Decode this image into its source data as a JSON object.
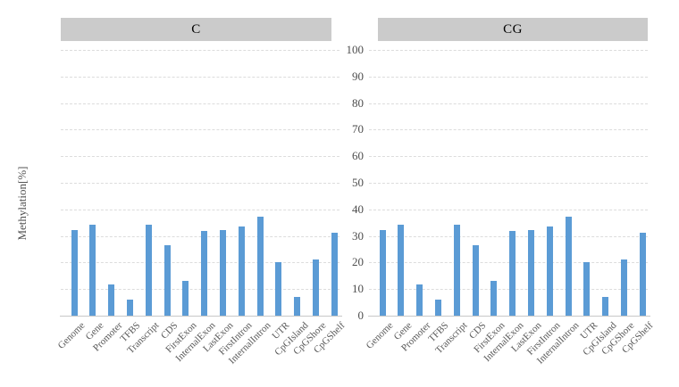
{
  "chart_data": {
    "type": "bar",
    "title": "",
    "xlabel": "",
    "ylabel": "Methylation[%]",
    "ylim": [
      0,
      100
    ],
    "yticks": [
      0,
      10,
      20,
      30,
      40,
      50,
      60,
      70,
      80,
      90,
      100
    ],
    "grid": "horizontal-dashed",
    "legend": "none",
    "bar_color": "#5B9BD5",
    "panel_header_bg": "#CBCBCB",
    "categories": [
      "Genome",
      "Gene",
      "Promoter",
      "TFBS",
      "Transcript",
      "CDS",
      "FirstExon",
      "InternalExon",
      "LastExon",
      "FirstIntron",
      "InternalIntron",
      "UTR",
      "CpGIsland",
      "CpGShore",
      "CpGShelf"
    ],
    "facets": [
      {
        "title": "C",
        "values": [
          32.3,
          34.4,
          11.8,
          6.2,
          34.4,
          26.4,
          13.2,
          31.9,
          32.3,
          33.4,
          37.4,
          20.2,
          7.1,
          21.3,
          31.3
        ]
      },
      {
        "title": "CG",
        "values": [
          32.3,
          34.4,
          11.8,
          6.2,
          34.4,
          26.4,
          13.2,
          31.9,
          32.3,
          33.4,
          37.4,
          20.2,
          7.1,
          21.3,
          31.3
        ]
      }
    ]
  }
}
